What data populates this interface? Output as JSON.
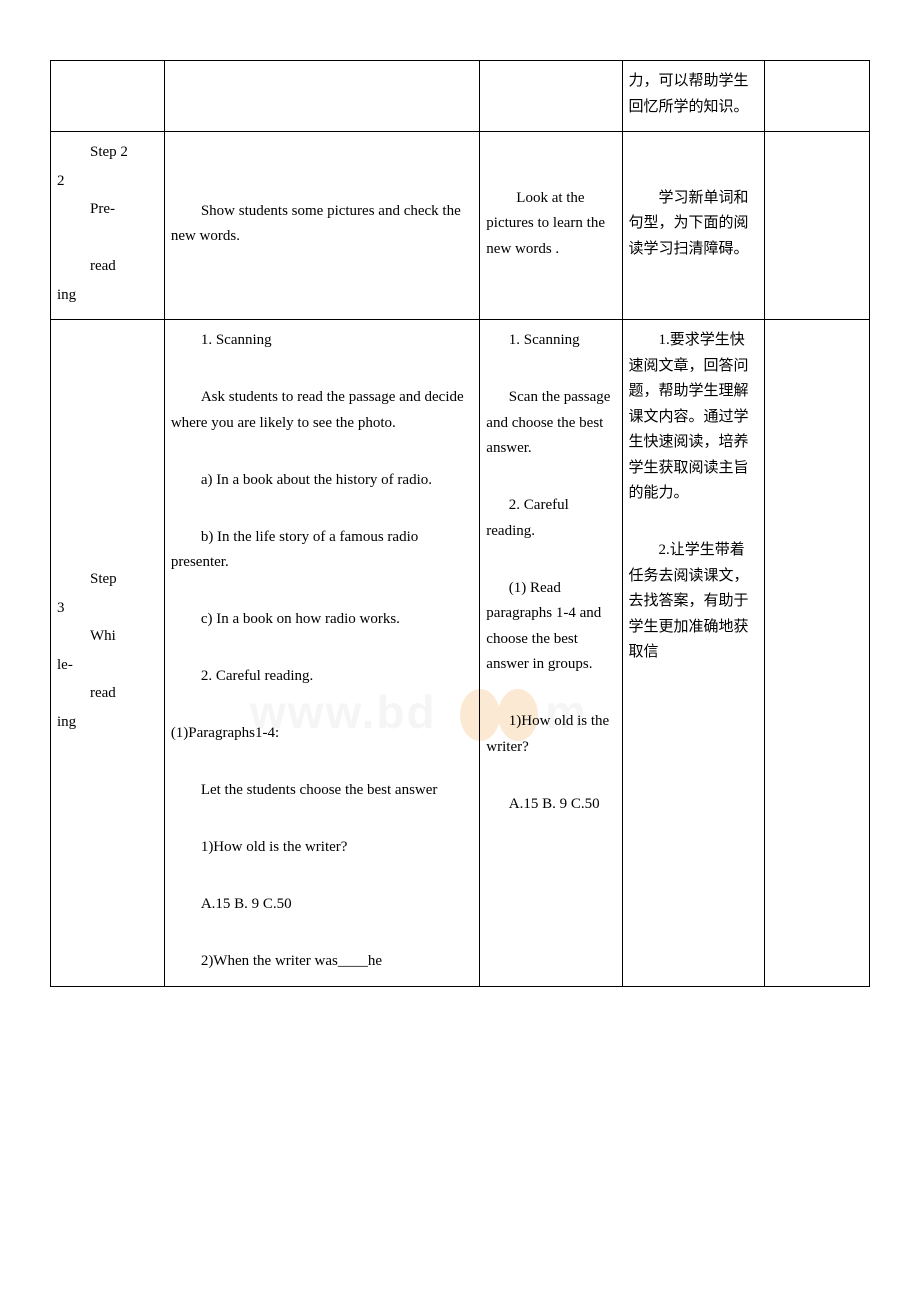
{
  "watermark": {
    "text_prefix": "www.bd",
    "text_suffix": "m",
    "bg_color": "#ffffff",
    "text_fill": "#eaeaea",
    "leaf_fill": "#f7cfa0"
  },
  "table": {
    "border_color": "#000000",
    "font_size": 15
  },
  "rows": [
    {
      "step": "",
      "teacher": "",
      "student": "",
      "purpose": "力，可以帮助学生回忆所学的知识。",
      "last": ""
    },
    {
      "step_lines": [
        "Step 2",
        "",
        "Pre-",
        "",
        "reading"
      ],
      "teacher_lines": [
        {
          "cls": "indent",
          "t": "Show students some pictures and check the new words."
        }
      ],
      "student_lines": [
        {
          "cls": "indent",
          "t": "Look at the pictures to learn the new words ."
        }
      ],
      "purpose_lines": [
        {
          "cls": "indent",
          "t": "学习新单词和句型，为下面的阅读学习扫清障碍。"
        }
      ],
      "last": ""
    },
    {
      "step_lines": [
        "Step 3",
        "",
        "While-",
        "",
        "reading"
      ],
      "teacher_lines": [
        {
          "cls": "indent",
          "t": "1. Scanning"
        },
        {
          "cls": "para",
          "t": ""
        },
        {
          "cls": "indent",
          "t": "Ask students to read the passage and decide where you are likely to see the photo."
        },
        {
          "cls": "para",
          "t": ""
        },
        {
          "cls": "indent",
          "t": "a) In a book about the history of radio."
        },
        {
          "cls": "para",
          "t": ""
        },
        {
          "cls": "indent",
          "t": "b)  In the life story of a famous radio presenter."
        },
        {
          "cls": "para",
          "t": ""
        },
        {
          "cls": "indent",
          "t": "c)  In a book on how radio works."
        },
        {
          "cls": "para",
          "t": ""
        },
        {
          "cls": "indent",
          "t": "2. Careful reading."
        },
        {
          "cls": "para",
          "t": ""
        },
        {
          "cls": "para",
          "t": "(1)Paragraphs1-4:"
        },
        {
          "cls": "para",
          "t": ""
        },
        {
          "cls": "indent",
          "t": "Let the students choose the best answer"
        },
        {
          "cls": "para",
          "t": ""
        },
        {
          "cls": "indent",
          "t": "1)How old is the writer?"
        },
        {
          "cls": "para",
          "t": ""
        },
        {
          "cls": "indent",
          "t": "A.15 B. 9 C.50"
        },
        {
          "cls": "para",
          "t": ""
        },
        {
          "cls": "indent",
          "t": "2)When the writer was____he"
        }
      ],
      "student_lines": [
        {
          "cls": "indent-s",
          "t": "1. Scanning"
        },
        {
          "cls": "para",
          "t": ""
        },
        {
          "cls": "indent-s",
          "t": "Scan the passage and choose the best answer."
        },
        {
          "cls": "para",
          "t": ""
        },
        {
          "cls": "indent-s",
          "t": "2. Careful reading."
        },
        {
          "cls": "para",
          "t": ""
        },
        {
          "cls": "indent-s",
          "t": "(1) Read paragraphs 1-4 and choose the best answer in groups."
        },
        {
          "cls": "para",
          "t": ""
        },
        {
          "cls": "indent-s",
          "t": "1)How old is the writer?"
        },
        {
          "cls": "para",
          "t": ""
        },
        {
          "cls": "indent-s",
          "t": "A.15 B. 9 C.50"
        }
      ],
      "purpose_lines": [
        {
          "cls": "indent",
          "t": "1.要求学生快速阅文章，回答问题，帮助学生理解课文内容。通过学生快速阅读，培养学生获取阅读主旨的能力。"
        },
        {
          "cls": "para",
          "t": ""
        },
        {
          "cls": "indent",
          "t": "2.让学生带着任务去阅读课文，去找答案，有助于学生更加准确地获取信"
        }
      ],
      "last": ""
    }
  ]
}
